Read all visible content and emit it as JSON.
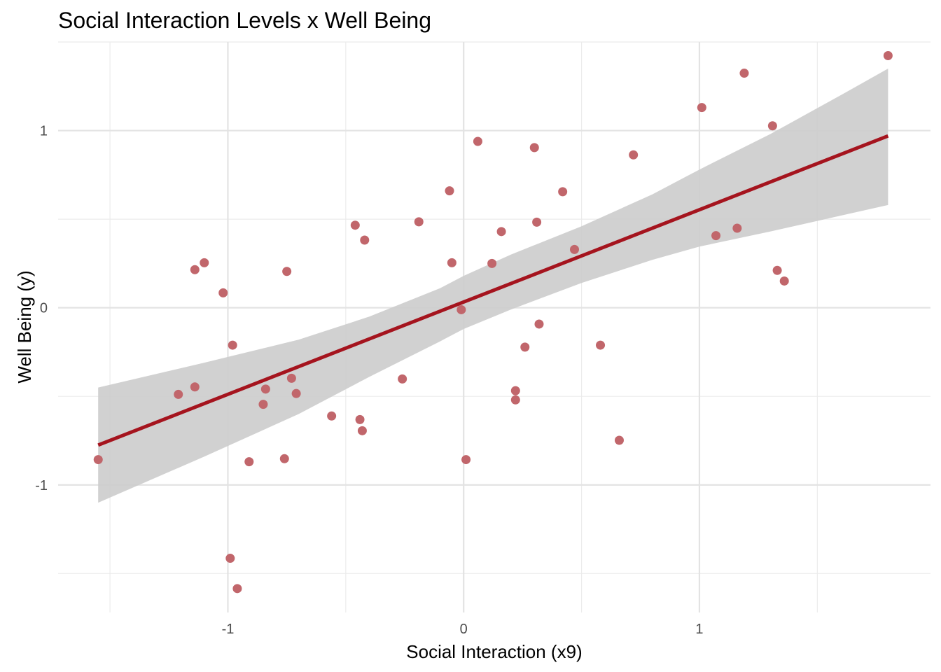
{
  "chart_data": {
    "type": "scatter",
    "title": "Social Interaction Levels x Well Being",
    "xlabel": "Social Interaction (x9)",
    "ylabel": "Well Being (y)",
    "xlim": [
      -1.72,
      1.98
    ],
    "ylim": [
      -1.72,
      1.5
    ],
    "x_ticks": [
      -1,
      0,
      1
    ],
    "x_tick_labels": [
      "-1",
      "0",
      "1"
    ],
    "y_ticks": [
      -1,
      0,
      1
    ],
    "y_tick_labels": [
      "-1",
      "0",
      "1"
    ],
    "grid": true,
    "legend": "none",
    "point_color": "#C1666B",
    "line_color": "#A5141E",
    "band_color": "#CCCCCC",
    "points": [
      {
        "x": -1.55,
        "y": -0.857
      },
      {
        "x": -1.21,
        "y": -0.489
      },
      {
        "x": -1.14,
        "y": -0.447
      },
      {
        "x": -1.14,
        "y": 0.215
      },
      {
        "x": -1.1,
        "y": 0.254
      },
      {
        "x": -1.02,
        "y": 0.084
      },
      {
        "x": -0.99,
        "y": -1.414
      },
      {
        "x": -0.98,
        "y": -0.211
      },
      {
        "x": -0.96,
        "y": -1.585
      },
      {
        "x": -0.91,
        "y": -0.869
      },
      {
        "x": -0.85,
        "y": -0.545
      },
      {
        "x": -0.84,
        "y": -0.459
      },
      {
        "x": -0.76,
        "y": -0.852
      },
      {
        "x": -0.75,
        "y": 0.205
      },
      {
        "x": -0.73,
        "y": -0.398
      },
      {
        "x": -0.71,
        "y": -0.484
      },
      {
        "x": -0.56,
        "y": -0.611
      },
      {
        "x": -0.46,
        "y": 0.466
      },
      {
        "x": -0.44,
        "y": -0.631
      },
      {
        "x": -0.43,
        "y": -0.694
      },
      {
        "x": -0.42,
        "y": 0.382
      },
      {
        "x": -0.26,
        "y": -0.402
      },
      {
        "x": -0.19,
        "y": 0.485
      },
      {
        "x": -0.06,
        "y": 0.66
      },
      {
        "x": -0.05,
        "y": 0.254
      },
      {
        "x": -0.01,
        "y": -0.011
      },
      {
        "x": 0.01,
        "y": -0.857
      },
      {
        "x": 0.06,
        "y": 0.939
      },
      {
        "x": 0.12,
        "y": 0.25
      },
      {
        "x": 0.16,
        "y": 0.43
      },
      {
        "x": 0.22,
        "y": -0.468
      },
      {
        "x": 0.22,
        "y": -0.52
      },
      {
        "x": 0.26,
        "y": -0.222
      },
      {
        "x": 0.3,
        "y": 0.904
      },
      {
        "x": 0.31,
        "y": 0.483
      },
      {
        "x": 0.32,
        "y": -0.092
      },
      {
        "x": 0.42,
        "y": 0.655
      },
      {
        "x": 0.47,
        "y": 0.329
      },
      {
        "x": 0.58,
        "y": -0.211
      },
      {
        "x": 0.66,
        "y": -0.748
      },
      {
        "x": 0.72,
        "y": 0.863
      },
      {
        "x": 1.01,
        "y": 1.13
      },
      {
        "x": 1.07,
        "y": 0.407
      },
      {
        "x": 1.16,
        "y": 0.449
      },
      {
        "x": 1.19,
        "y": 1.324
      },
      {
        "x": 1.31,
        "y": 1.027
      },
      {
        "x": 1.33,
        "y": 0.211
      },
      {
        "x": 1.36,
        "y": 0.151
      },
      {
        "x": 1.8,
        "y": 1.423
      }
    ],
    "fit_line": {
      "x": [
        -1.55,
        1.8
      ],
      "y": [
        -0.775,
        0.97
      ]
    },
    "confidence_band": {
      "x": [
        -1.55,
        -1.1,
        -0.7,
        -0.4,
        -0.1,
        0.0,
        0.2,
        0.5,
        0.8,
        1.0,
        1.3,
        1.6,
        1.8
      ],
      "upper": [
        -0.45,
        -0.31,
        -0.18,
        -0.05,
        0.11,
        0.18,
        0.3,
        0.46,
        0.64,
        0.78,
        0.98,
        1.2,
        1.35
      ],
      "lower": [
        -1.1,
        -0.84,
        -0.6,
        -0.39,
        -0.19,
        -0.12,
        -0.01,
        0.14,
        0.27,
        0.345,
        0.43,
        0.52,
        0.58
      ]
    }
  }
}
